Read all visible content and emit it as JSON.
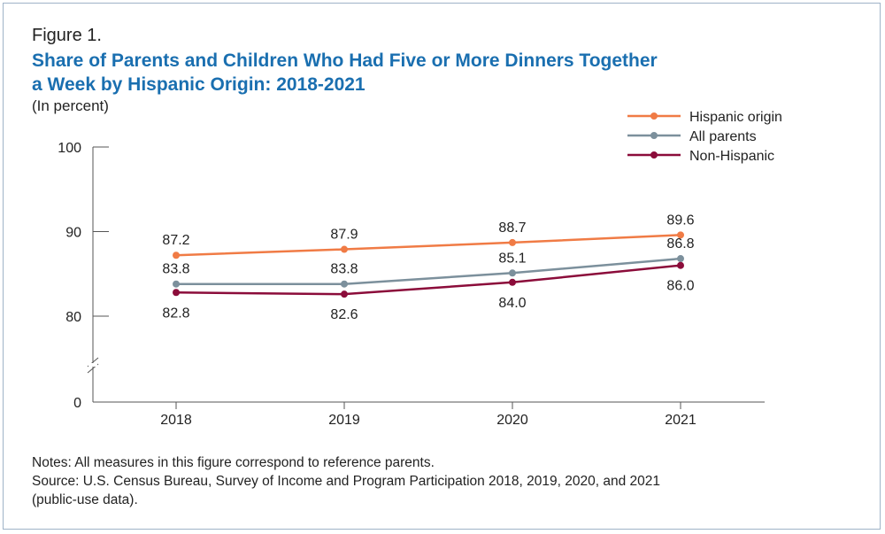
{
  "figure_label": "Figure 1.",
  "title_line1": "Share of Parents and Children Who Had Five or More Dinners Together",
  "title_line2": "a Week by Hispanic Origin: 2018-2021",
  "subtitle": "(In percent)",
  "notes": "Notes: All measures in this figure correspond to reference parents.",
  "source_line1": "Source: U.S. Census Bureau, Survey of Income and Program Participation 2018, 2019, 2020, and 2021",
  "source_line2": "(public-use data).",
  "chart_data": {
    "type": "line",
    "title": "Share of Parents and Children Who Had Five or More Dinners Together a Week by Hispanic Origin: 2018-2021",
    "ylabel": "(In percent)",
    "xlabel": "",
    "categories": [
      "2018",
      "2019",
      "2020",
      "2021"
    ],
    "y_ticks": [
      0,
      80,
      90,
      100
    ],
    "y_axis_break": true,
    "ylim": [
      0,
      100
    ],
    "grid": false,
    "legend_position": "top-right",
    "series": [
      {
        "name": "Hispanic origin",
        "color": "#f07b45",
        "values": [
          87.2,
          87.9,
          88.7,
          89.6
        ],
        "label_position": "above"
      },
      {
        "name": "All parents",
        "color": "#7c909c",
        "values": [
          83.8,
          83.8,
          85.1,
          86.8
        ],
        "label_position": "above"
      },
      {
        "name": "Non-Hispanic",
        "color": "#8b0c3a",
        "values": [
          82.8,
          82.6,
          84.0,
          86.0
        ],
        "label_position": "below"
      }
    ]
  }
}
